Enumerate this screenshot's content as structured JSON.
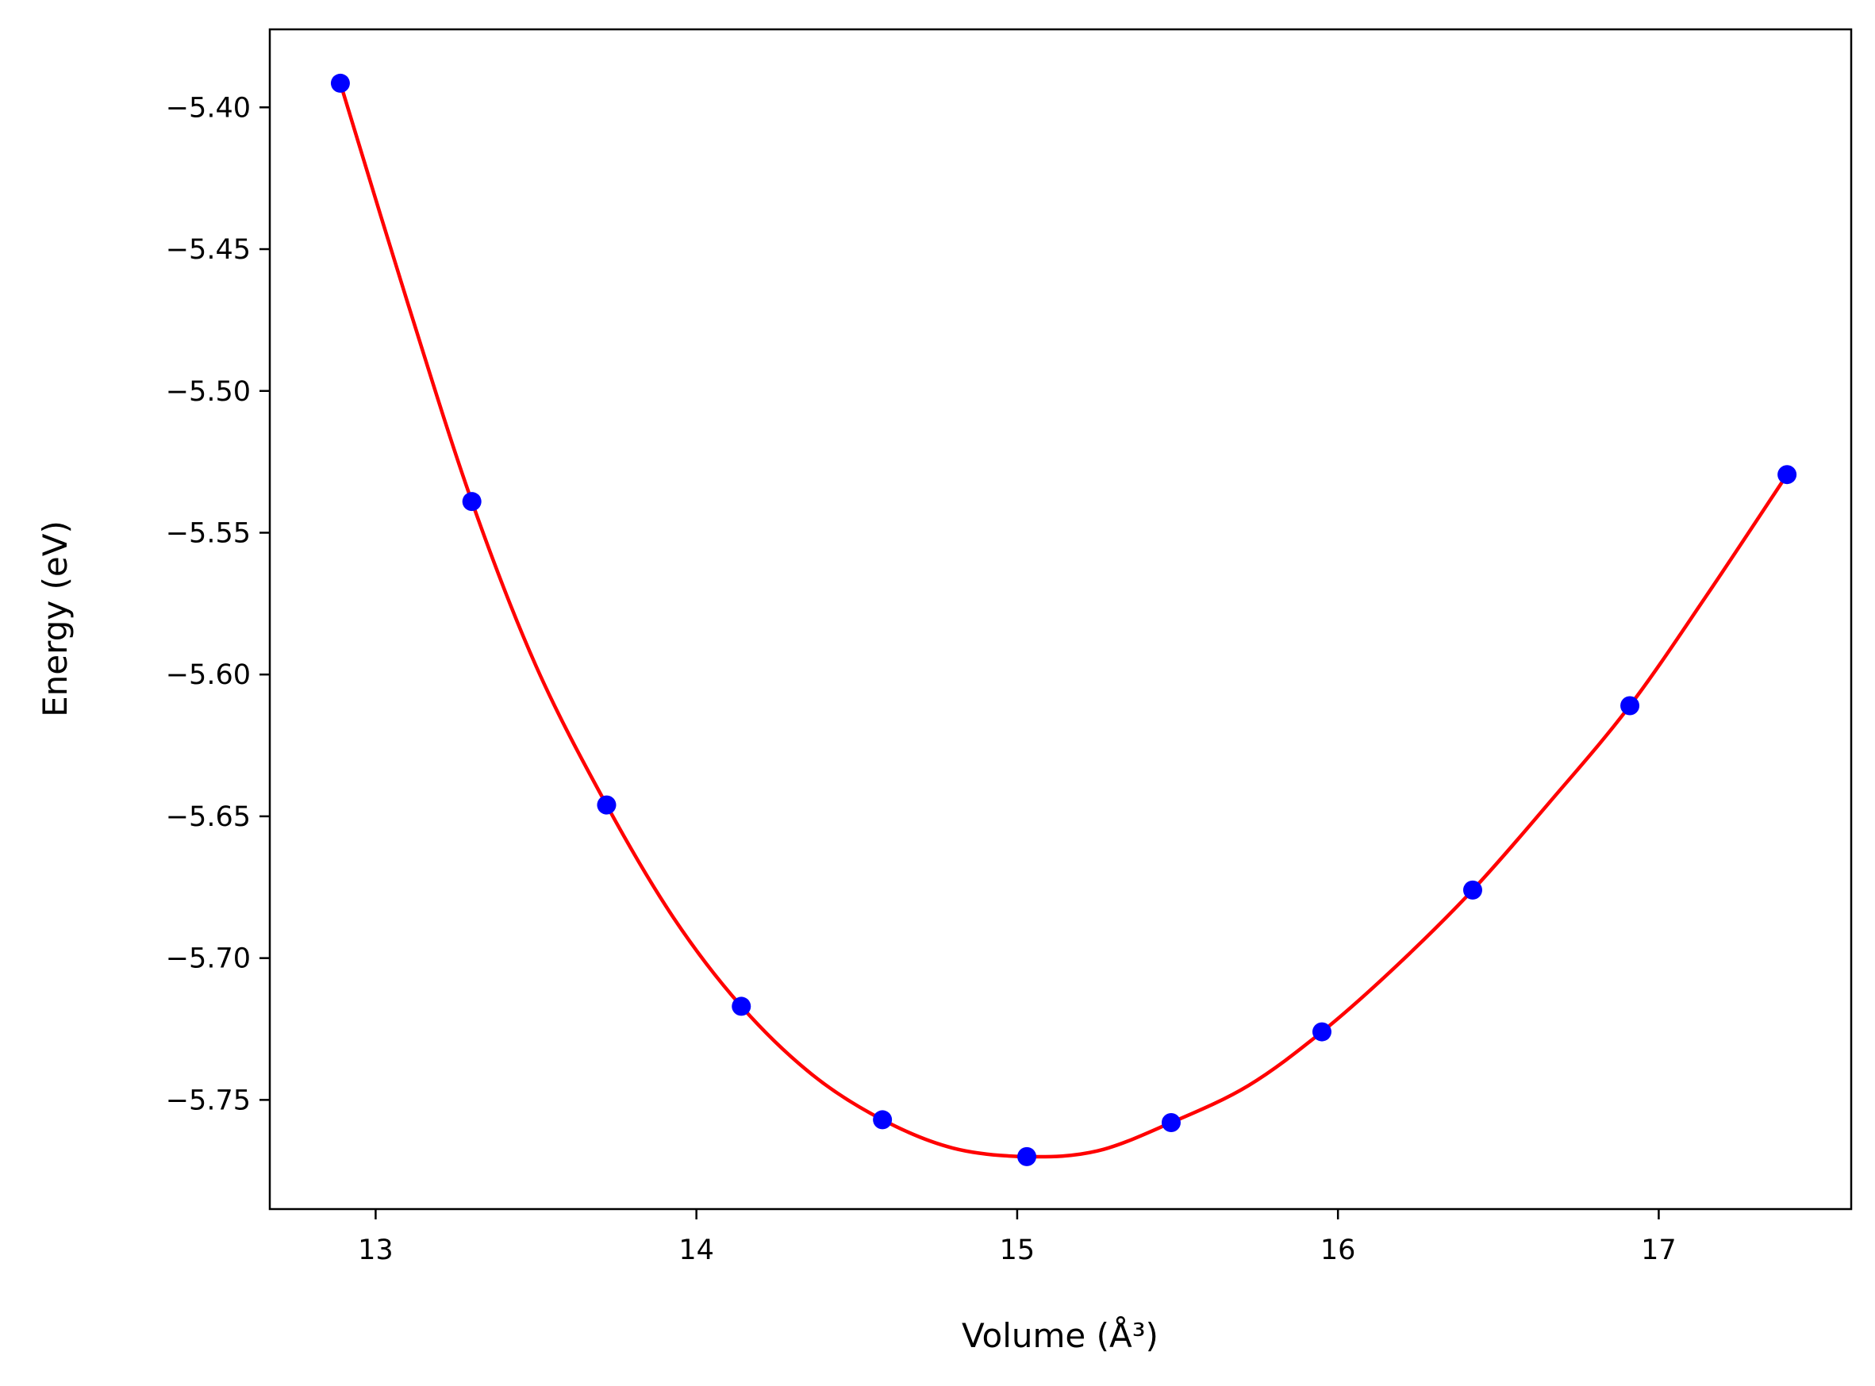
{
  "chart_data": {
    "type": "scatter",
    "xlabel": "Volume (Å³)",
    "ylabel": "Energy (eV)",
    "xlim": [
      12.67,
      17.6
    ],
    "ylim": [
      -5.7885,
      -5.3725
    ],
    "xticks": [
      13,
      14,
      15,
      16,
      17
    ],
    "xtick_labels": [
      "13",
      "14",
      "15",
      "16",
      "17"
    ],
    "yticks": [
      -5.4,
      -5.45,
      -5.5,
      -5.55,
      -5.6,
      -5.65,
      -5.7,
      -5.75
    ],
    "ytick_labels": [
      "−5.40",
      "−5.45",
      "−5.50",
      "−5.55",
      "−5.60",
      "−5.65",
      "−5.70",
      "−5.75"
    ],
    "grid": false,
    "series": [
      {
        "kind": "points",
        "color": "#0000ff",
        "x": [
          12.89,
          13.3,
          13.72,
          14.14,
          14.58,
          15.03,
          15.48,
          15.95,
          16.42,
          16.91,
          17.4
        ],
        "y": [
          -5.3915,
          -5.539,
          -5.646,
          -5.717,
          -5.757,
          -5.77,
          -5.758,
          -5.726,
          -5.676,
          -5.611,
          -5.5295
        ]
      },
      {
        "kind": "fit-line",
        "color": "#ff0000",
        "x": [
          12.89,
          13.1,
          13.3,
          13.5,
          13.72,
          13.93,
          14.14,
          14.36,
          14.58,
          14.8,
          15.03,
          15.25,
          15.48,
          15.72,
          15.95,
          16.18,
          16.42,
          16.66,
          16.91,
          17.15,
          17.4
        ],
        "y": [
          -5.3915,
          -5.469,
          -5.539,
          -5.597,
          -5.646,
          -5.686,
          -5.717,
          -5.741,
          -5.757,
          -5.767,
          -5.77,
          -5.768,
          -5.758,
          -5.745,
          -5.726,
          -5.703,
          -5.676,
          -5.645,
          -5.611,
          -5.572,
          -5.5295
        ]
      }
    ]
  }
}
